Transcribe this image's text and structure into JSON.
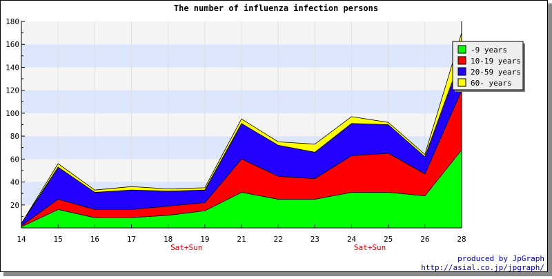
{
  "chart_data": {
    "type": "area",
    "stacked": true,
    "title": "The number of influenza infection persons",
    "xlabel": "",
    "ylabel": "",
    "x": [
      "14",
      "15",
      "16",
      "17",
      "18",
      "19",
      "21",
      "22",
      "23",
      "24",
      "25",
      "26",
      "28"
    ],
    "weekend_labels": [
      {
        "after_x": "18",
        "text": "Sat+Sun"
      },
      {
        "after_x": "24",
        "text": "Sat+Sun"
      }
    ],
    "ylim": [
      0,
      180
    ],
    "yticks": [
      20,
      40,
      60,
      80,
      100,
      120,
      140,
      160,
      180
    ],
    "grid": true,
    "legend_position": "top-right",
    "series": [
      {
        "name": "-9 years",
        "color": "#00ff00",
        "values": [
          1,
          16,
          9,
          9,
          11,
          15,
          31,
          25,
          25,
          31,
          31,
          28,
          68
        ]
      },
      {
        "name": "10-19 years",
        "color": "#ff0000",
        "values": [
          1,
          9,
          7,
          7,
          8,
          7,
          29,
          20,
          18,
          32,
          34,
          19,
          52
        ]
      },
      {
        "name": "20-59 years",
        "color": "#2200ff",
        "values": [
          2,
          28,
          15,
          17,
          13,
          11,
          31,
          27,
          23,
          28,
          25,
          15,
          30
        ]
      },
      {
        "name": "60- years",
        "color": "#ffff00",
        "values": [
          0,
          3,
          2,
          3,
          2,
          2,
          4,
          3,
          7,
          6,
          2,
          2,
          20
        ]
      }
    ]
  },
  "footer": {
    "credit": "produced by JpGraph",
    "url": "http://asial.co.jp/jpgraph/"
  }
}
